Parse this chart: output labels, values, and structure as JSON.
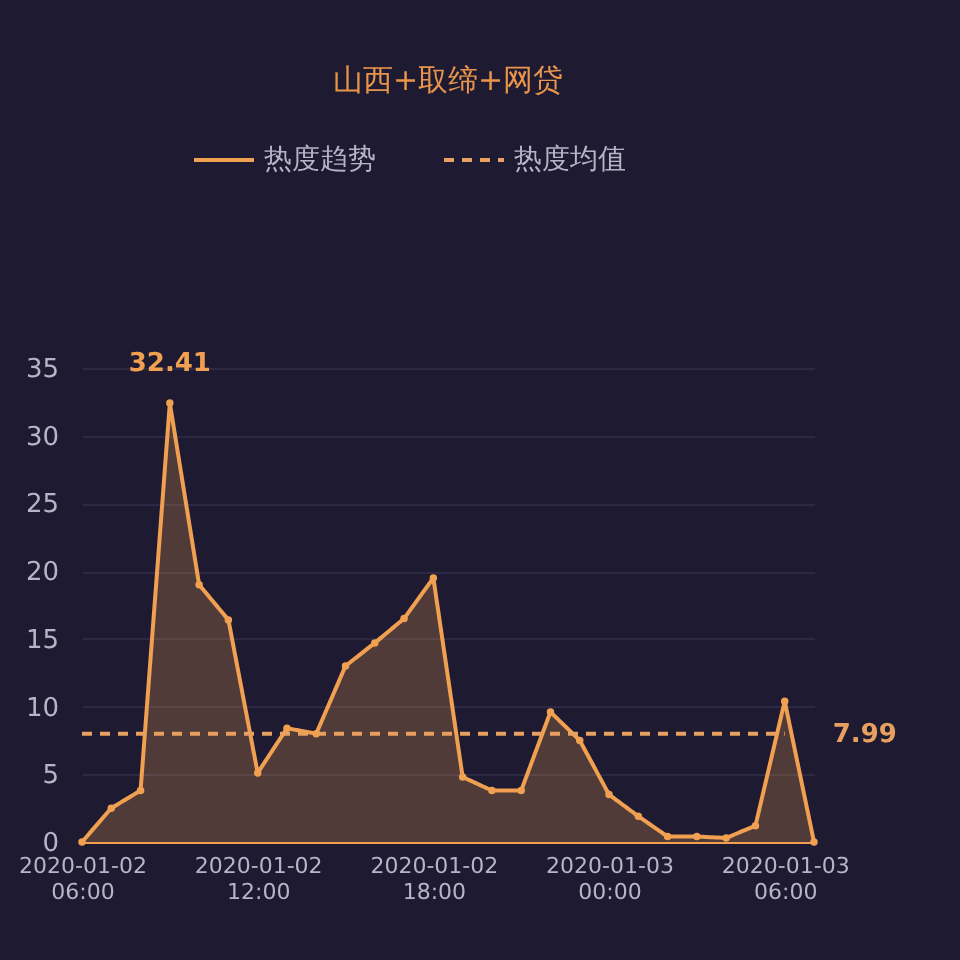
{
  "chart_data": {
    "type": "area",
    "title": "山西+取缔+网贷",
    "legend": "top",
    "grid": "y",
    "marker": "circle",
    "x": [
      "2020-01-02T06:00",
      "2020-01-02T07:00",
      "2020-01-02T08:00",
      "2020-01-02T09:00",
      "2020-01-02T10:00",
      "2020-01-02T11:00",
      "2020-01-02T12:00",
      "2020-01-02T13:00",
      "2020-01-02T14:00",
      "2020-01-02T15:00",
      "2020-01-02T16:00",
      "2020-01-02T17:00",
      "2020-01-02T18:00",
      "2020-01-02T19:00",
      "2020-01-02T20:00",
      "2020-01-02T21:00",
      "2020-01-02T22:00",
      "2020-01-02T23:00",
      "2020-01-03T00:00",
      "2020-01-03T01:00",
      "2020-01-03T02:00",
      "2020-01-03T03:00",
      "2020-01-03T04:00",
      "2020-01-03T05:00",
      "2020-01-03T06:00",
      "2020-01-03T07:00"
    ],
    "series": [
      {
        "name": "热度趋势",
        "color": "#f0a050",
        "values": [
          0,
          2.5,
          3.8,
          32.41,
          19.0,
          16.4,
          5.1,
          8.4,
          8.0,
          13.0,
          14.7,
          16.5,
          19.5,
          4.8,
          3.8,
          3.8,
          9.6,
          7.5,
          3.5,
          1.9,
          0.4,
          0.4,
          0.3,
          1.2,
          10.4,
          0
        ],
        "value_labels": [
          null,
          null,
          null,
          "32.41",
          null,
          null,
          null,
          null,
          null,
          null,
          null,
          null,
          null,
          null,
          null,
          null,
          null,
          null,
          null,
          null,
          null,
          null,
          null,
          null,
          null,
          null
        ]
      },
      {
        "name": "热度均值",
        "type": "line",
        "line_style": "dashed",
        "marker": "none",
        "color": "#e8a060",
        "x": [
          "2020-01-02T06:00",
          "2020-01-03T06:00"
        ],
        "values": [
          7.99,
          7.99
        ]
      }
    ],
    "annotations": [
      {
        "text": "7.99",
        "x": "2020-01-03T06:00",
        "y": 7.99
      }
    ],
    "xlim": [
      "2020-01-02T06:00",
      "2020-01-03T07:00"
    ],
    "xticks": [
      {
        "value": "2020-01-02T06:00",
        "label": "2020-01-02 06:00"
      },
      {
        "value": "2020-01-02T12:00",
        "label": "2020-01-02 12:00"
      },
      {
        "value": "2020-01-02T18:00",
        "label": "2020-01-02 18:00"
      },
      {
        "value": "2020-01-03T00:00",
        "label": "2020-01-03 00:00"
      },
      {
        "value": "2020-01-03T06:00",
        "label": "2020-01-03 06:00"
      }
    ],
    "ylim": [
      0,
      35
    ],
    "yticks": [
      0,
      5,
      10,
      15,
      20,
      25,
      30,
      35
    ]
  }
}
